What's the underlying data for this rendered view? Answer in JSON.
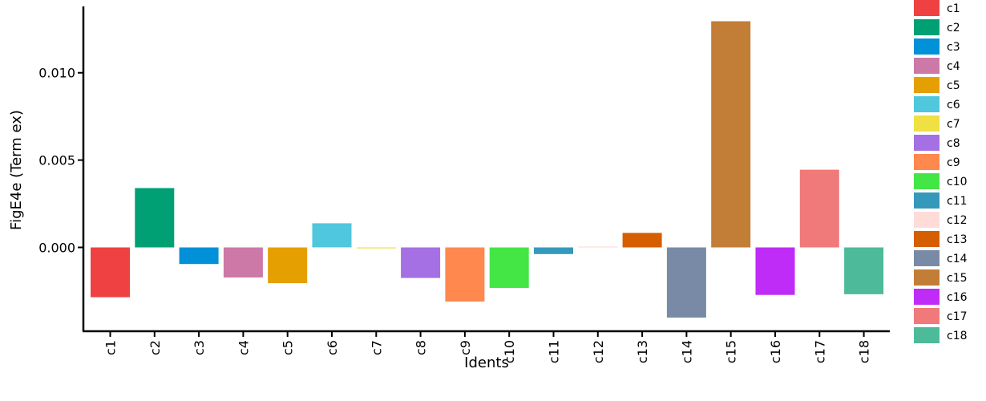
{
  "chart_data": {
    "type": "bar",
    "title": "",
    "xlabel": "Idents",
    "ylabel": "FigE4e (Term ex)",
    "categories": [
      "c1",
      "c2",
      "c3",
      "c4",
      "c5",
      "c6",
      "c7",
      "c8",
      "c9",
      "c10",
      "c11",
      "c12",
      "c13",
      "c14",
      "c15",
      "c16",
      "c17",
      "c18"
    ],
    "values": [
      -0.00285,
      0.0034,
      -0.00095,
      -0.00172,
      -0.00205,
      0.00138,
      -5e-05,
      -0.00175,
      -0.0031,
      -0.00232,
      -0.00038,
      5e-05,
      0.00083,
      -0.00402,
      0.01295,
      -0.00272,
      0.00445,
      -0.00268
    ],
    "colors": [
      "#EF4142",
      "#00A074",
      "#0091D8",
      "#CC79A7",
      "#E59F00",
      "#4FC7DC",
      "#EFE043",
      "#A570E4",
      "#FF884E",
      "#44E646",
      "#3599BB",
      "#FFDCD8",
      "#D55E00",
      "#788AA6",
      "#C27D36",
      "#BF2BF7",
      "#F07A79",
      "#4DBB9A"
    ],
    "ylim": [
      -0.0048,
      0.0138
    ],
    "yticks": [
      "0.000",
      "0.005",
      "0.010"
    ],
    "ytick_values": [
      0,
      0.005,
      0.01
    ],
    "grid": false,
    "legend_position": "right",
    "legend": [
      "c1",
      "c2",
      "c3",
      "c4",
      "c5",
      "c6",
      "c7",
      "c8",
      "c9",
      "c10",
      "c11",
      "c12",
      "c13",
      "c14",
      "c15",
      "c16",
      "c17",
      "c18"
    ]
  }
}
